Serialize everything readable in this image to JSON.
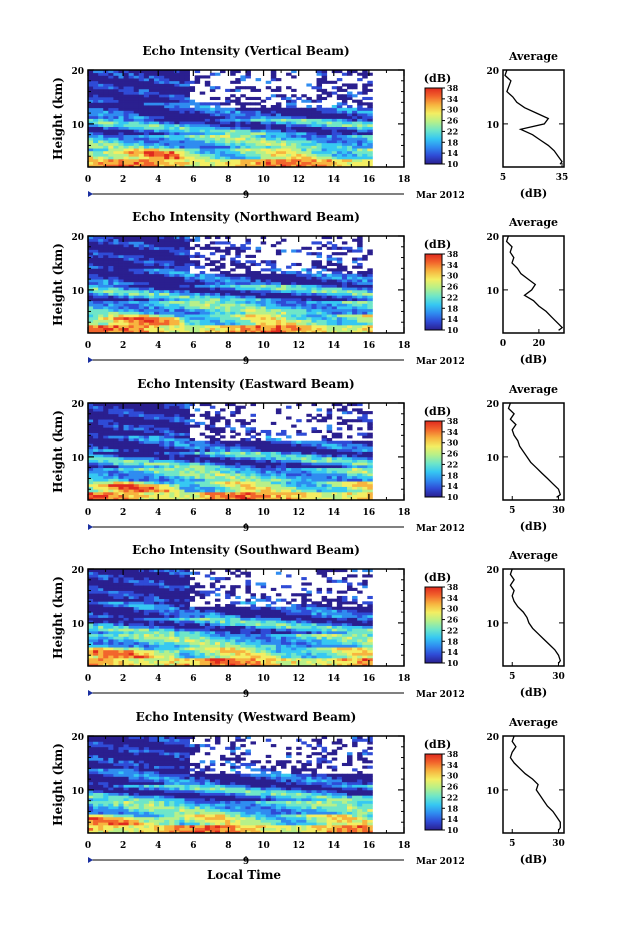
{
  "figure": {
    "date_label": "Mar 2012",
    "date_day": "9",
    "x_axis_title": "Local Time",
    "colorbar_unit": "(dB)",
    "colorbar_ticks": [
      "10",
      "14",
      "18",
      "22",
      "26",
      "30",
      "34",
      "38"
    ],
    "avg_title": "Average",
    "avg_xlabel": "(dB)",
    "y_axis_label": "Height (km)",
    "x_ticks": [
      "0",
      "2",
      "4",
      "6",
      "8",
      "10",
      "12",
      "14",
      "16",
      "18"
    ]
  },
  "colorscale": [
    "#2a1f8f",
    "#2f4bd6",
    "#2f8cf0",
    "#36c8f2",
    "#6fe6c8",
    "#b7f089",
    "#f3ee62",
    "#f7b43f",
    "#f2652c",
    "#e02a1e"
  ],
  "chart_data": [
    {
      "type": "heatmap",
      "title": "Echo Intensity (Vertical Beam)",
      "xlabel": "",
      "ylabel": "Height (km)",
      "xlim": [
        0,
        18
      ],
      "ylim": [
        2,
        20
      ],
      "y_ticks": [
        "20",
        "10"
      ],
      "colorbar": {
        "label": "(dB)",
        "range": [
          10,
          38
        ]
      },
      "profile": {
        "title": "Average",
        "xlabel": "(dB)",
        "xlim": [
          5,
          36
        ],
        "x_ticks": [
          "5",
          "35"
        ],
        "height": [
          20,
          19,
          18,
          17,
          16,
          15,
          14,
          13,
          12,
          11,
          10,
          9,
          8,
          7,
          6,
          5,
          4,
          3,
          2.5
        ],
        "value": [
          7,
          6,
          9,
          8,
          7,
          10,
          12,
          16,
          22,
          28,
          26,
          14,
          20,
          24,
          28,
          31,
          33,
          35,
          34
        ]
      }
    },
    {
      "type": "heatmap",
      "title": "Echo Intensity (Northward Beam)",
      "xlabel": "",
      "ylabel": "Height (km)",
      "xlim": [
        0,
        18
      ],
      "ylim": [
        2,
        20
      ],
      "y_ticks": [
        "20",
        "10"
      ],
      "colorbar": {
        "label": "(dB)",
        "range": [
          10,
          38
        ]
      },
      "profile": {
        "title": "Average",
        "xlabel": "(dB)",
        "xlim": [
          0,
          34
        ],
        "x_ticks": [
          "0",
          "20"
        ],
        "height": [
          20,
          19,
          18,
          17,
          16,
          15,
          14,
          13,
          12,
          11,
          10,
          9,
          8,
          7,
          6,
          5,
          4,
          3,
          2.5
        ],
        "value": [
          3,
          2,
          5,
          4,
          6,
          5,
          8,
          10,
          14,
          18,
          16,
          12,
          17,
          20,
          24,
          27,
          30,
          33,
          31
        ]
      }
    },
    {
      "type": "heatmap",
      "title": "Echo Intensity (Eastward Beam)",
      "xlabel": "",
      "ylabel": "Height (km)",
      "xlim": [
        0,
        18
      ],
      "ylim": [
        2,
        20
      ],
      "y_ticks": [
        "20",
        "10"
      ],
      "colorbar": {
        "label": "(dB)",
        "range": [
          10,
          38
        ]
      },
      "profile": {
        "title": "Average",
        "xlabel": "(dB)",
        "xlim": [
          0,
          33
        ],
        "x_ticks": [
          "5",
          "30"
        ],
        "height": [
          20,
          19,
          18,
          17,
          16,
          15,
          14,
          13,
          12,
          11,
          10,
          9,
          8,
          7,
          6,
          5,
          4,
          3,
          2.5
        ],
        "value": [
          4,
          3,
          6,
          4,
          7,
          5,
          6,
          8,
          9,
          11,
          13,
          15,
          18,
          21,
          24,
          27,
          30,
          31,
          29
        ]
      }
    },
    {
      "type": "heatmap",
      "title": "Echo Intensity (Southward Beam)",
      "xlabel": "",
      "ylabel": "Height (km)",
      "xlim": [
        0,
        18
      ],
      "ylim": [
        2,
        20
      ],
      "y_ticks": [
        "20",
        "10"
      ],
      "colorbar": {
        "label": "(dB)",
        "range": [
          10,
          38
        ]
      },
      "profile": {
        "title": "Average",
        "xlabel": "(dB)",
        "xlim": [
          0,
          33
        ],
        "x_ticks": [
          "5",
          "30"
        ],
        "height": [
          20,
          19,
          18,
          17,
          16,
          15,
          14,
          13,
          12,
          11,
          10,
          9,
          8,
          7,
          6,
          5,
          4,
          3,
          2.5
        ],
        "value": [
          5,
          4,
          6,
          4,
          6,
          5,
          6,
          8,
          11,
          13,
          14,
          16,
          19,
          22,
          25,
          28,
          30,
          31,
          30
        ]
      }
    },
    {
      "type": "heatmap",
      "title": "Echo Intensity (Westward Beam)",
      "xlabel": "Local Time",
      "ylabel": "Height (km)",
      "xlim": [
        0,
        18
      ],
      "ylim": [
        2,
        20
      ],
      "y_ticks": [
        "20",
        "10"
      ],
      "colorbar": {
        "label": "(dB)",
        "range": [
          10,
          38
        ]
      },
      "profile": {
        "title": "Average",
        "xlabel": "(dB)",
        "xlim": [
          0,
          33
        ],
        "x_ticks": [
          "5",
          "30"
        ],
        "height": [
          20,
          19,
          18,
          17,
          16,
          15,
          14,
          13,
          12,
          11,
          10,
          9,
          8,
          7,
          6,
          5,
          4,
          3,
          2.5
        ],
        "value": [
          6,
          5,
          7,
          5,
          4,
          6,
          9,
          12,
          16,
          19,
          18,
          20,
          22,
          24,
          27,
          29,
          31,
          31,
          30
        ]
      }
    }
  ]
}
